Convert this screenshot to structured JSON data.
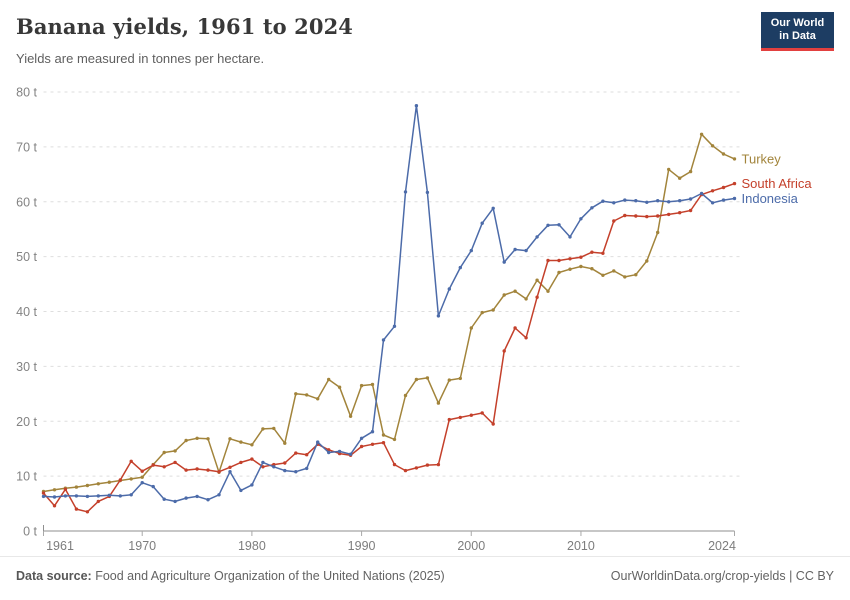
{
  "header": {
    "title": "Banana yields, 1961 to 2024",
    "subtitle": "Yields are measured in tonnes per hectare."
  },
  "logo": {
    "line1": "Our World",
    "line2": "in Data",
    "bg_color": "#1d3d63",
    "accent_color": "#e2403f"
  },
  "chart_data": {
    "type": "line",
    "title": "Banana yields, 1961 to 2024",
    "unit_suffix": " t",
    "year_start": 1961,
    "year_end": 2024,
    "ylim": [
      0,
      80
    ],
    "y_ticks": [
      0,
      10,
      20,
      30,
      40,
      50,
      60,
      70,
      80
    ],
    "x_tick_labels": [
      1961,
      1970,
      1980,
      1990,
      2000,
      2010,
      2024
    ],
    "grid": "dashed-horizontal",
    "legend_position": "right-of-line-end",
    "series": [
      {
        "name": "Turkey",
        "color": "#a2843b",
        "values": [
          7.2,
          7.5,
          7.8,
          8.0,
          8.3,
          8.6,
          8.9,
          9.2,
          9.5,
          9.8,
          12.1,
          14.3,
          14.6,
          16.5,
          16.9,
          16.8,
          10.7,
          16.8,
          16.2,
          15.7,
          18.6,
          18.7,
          16.0,
          25.0,
          24.8,
          24.1,
          27.6,
          26.2,
          20.9,
          26.5,
          26.7,
          17.5,
          16.7,
          24.7,
          27.6,
          27.9,
          23.3,
          27.5,
          27.8,
          37.0,
          39.8,
          40.3,
          43.0,
          43.7,
          42.3,
          45.7,
          43.7,
          47.1,
          47.7,
          48.2,
          47.8,
          46.6,
          47.4,
          46.3,
          46.7,
          49.2,
          54.4,
          65.9,
          64.3,
          65.5,
          72.3,
          70.2,
          68.7,
          67.8
        ]
      },
      {
        "name": "South Africa",
        "color": "#c4402b",
        "values": [
          6.9,
          4.6,
          7.6,
          4.0,
          3.5,
          5.4,
          6.3,
          9.3,
          12.7,
          10.9,
          12.0,
          11.7,
          12.5,
          11.1,
          11.3,
          11.1,
          10.8,
          11.6,
          12.5,
          13.1,
          11.7,
          12.1,
          12.4,
          14.2,
          13.9,
          15.8,
          14.8,
          14.1,
          13.8,
          15.4,
          15.8,
          16.1,
          12.1,
          11.0,
          11.5,
          12.0,
          12.1,
          20.3,
          20.7,
          21.1,
          21.5,
          19.5,
          32.8,
          37.0,
          35.2,
          42.6,
          49.3,
          49.3,
          49.6,
          49.9,
          50.8,
          50.6,
          56.5,
          57.5,
          57.4,
          57.3,
          57.4,
          57.7,
          58.0,
          58.4,
          61.3,
          62.0,
          62.6,
          63.3
        ]
      },
      {
        "name": "Indonesia",
        "color": "#4c6ba9",
        "values": [
          6.3,
          6.2,
          6.4,
          6.4,
          6.3,
          6.4,
          6.5,
          6.4,
          6.6,
          8.8,
          8.1,
          5.8,
          5.4,
          6.0,
          6.3,
          5.7,
          6.6,
          10.8,
          7.4,
          8.4,
          12.5,
          11.7,
          11.0,
          10.8,
          11.4,
          16.2,
          14.3,
          14.5,
          14.0,
          16.9,
          18.1,
          34.8,
          37.3,
          61.8,
          77.5,
          61.7,
          39.2,
          44.1,
          48.0,
          51.1,
          56.1,
          58.8,
          49.0,
          51.3,
          51.1,
          53.6,
          55.7,
          55.8,
          53.6,
          56.9,
          58.9,
          60.1,
          59.8,
          60.3,
          60.2,
          59.9,
          60.2,
          60.0,
          60.2,
          60.5,
          61.5,
          59.8,
          60.3,
          60.6
        ]
      }
    ]
  },
  "footer": {
    "source_label": "Data source:",
    "source_text": " Food and Agriculture Organization of the United Nations (2025)",
    "right_text": "OurWorldinData.org/crop-yields | CC BY"
  }
}
